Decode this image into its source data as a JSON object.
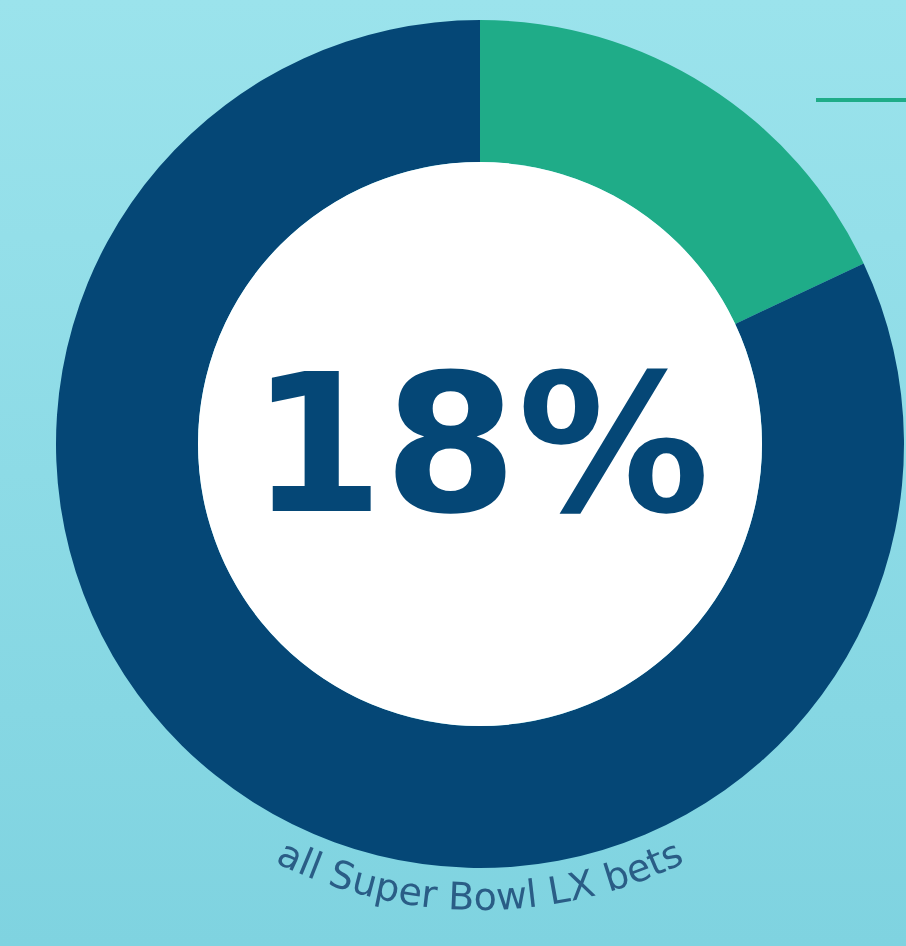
{
  "chart_data": {
    "type": "donut",
    "categories": [
      null,
      null
    ],
    "values": [
      18,
      82
    ],
    "colors": [
      "#1fac88",
      "#054776"
    ],
    "annotations": [
      "18%",
      "all Super Bowl LX bets"
    ]
  }
}
